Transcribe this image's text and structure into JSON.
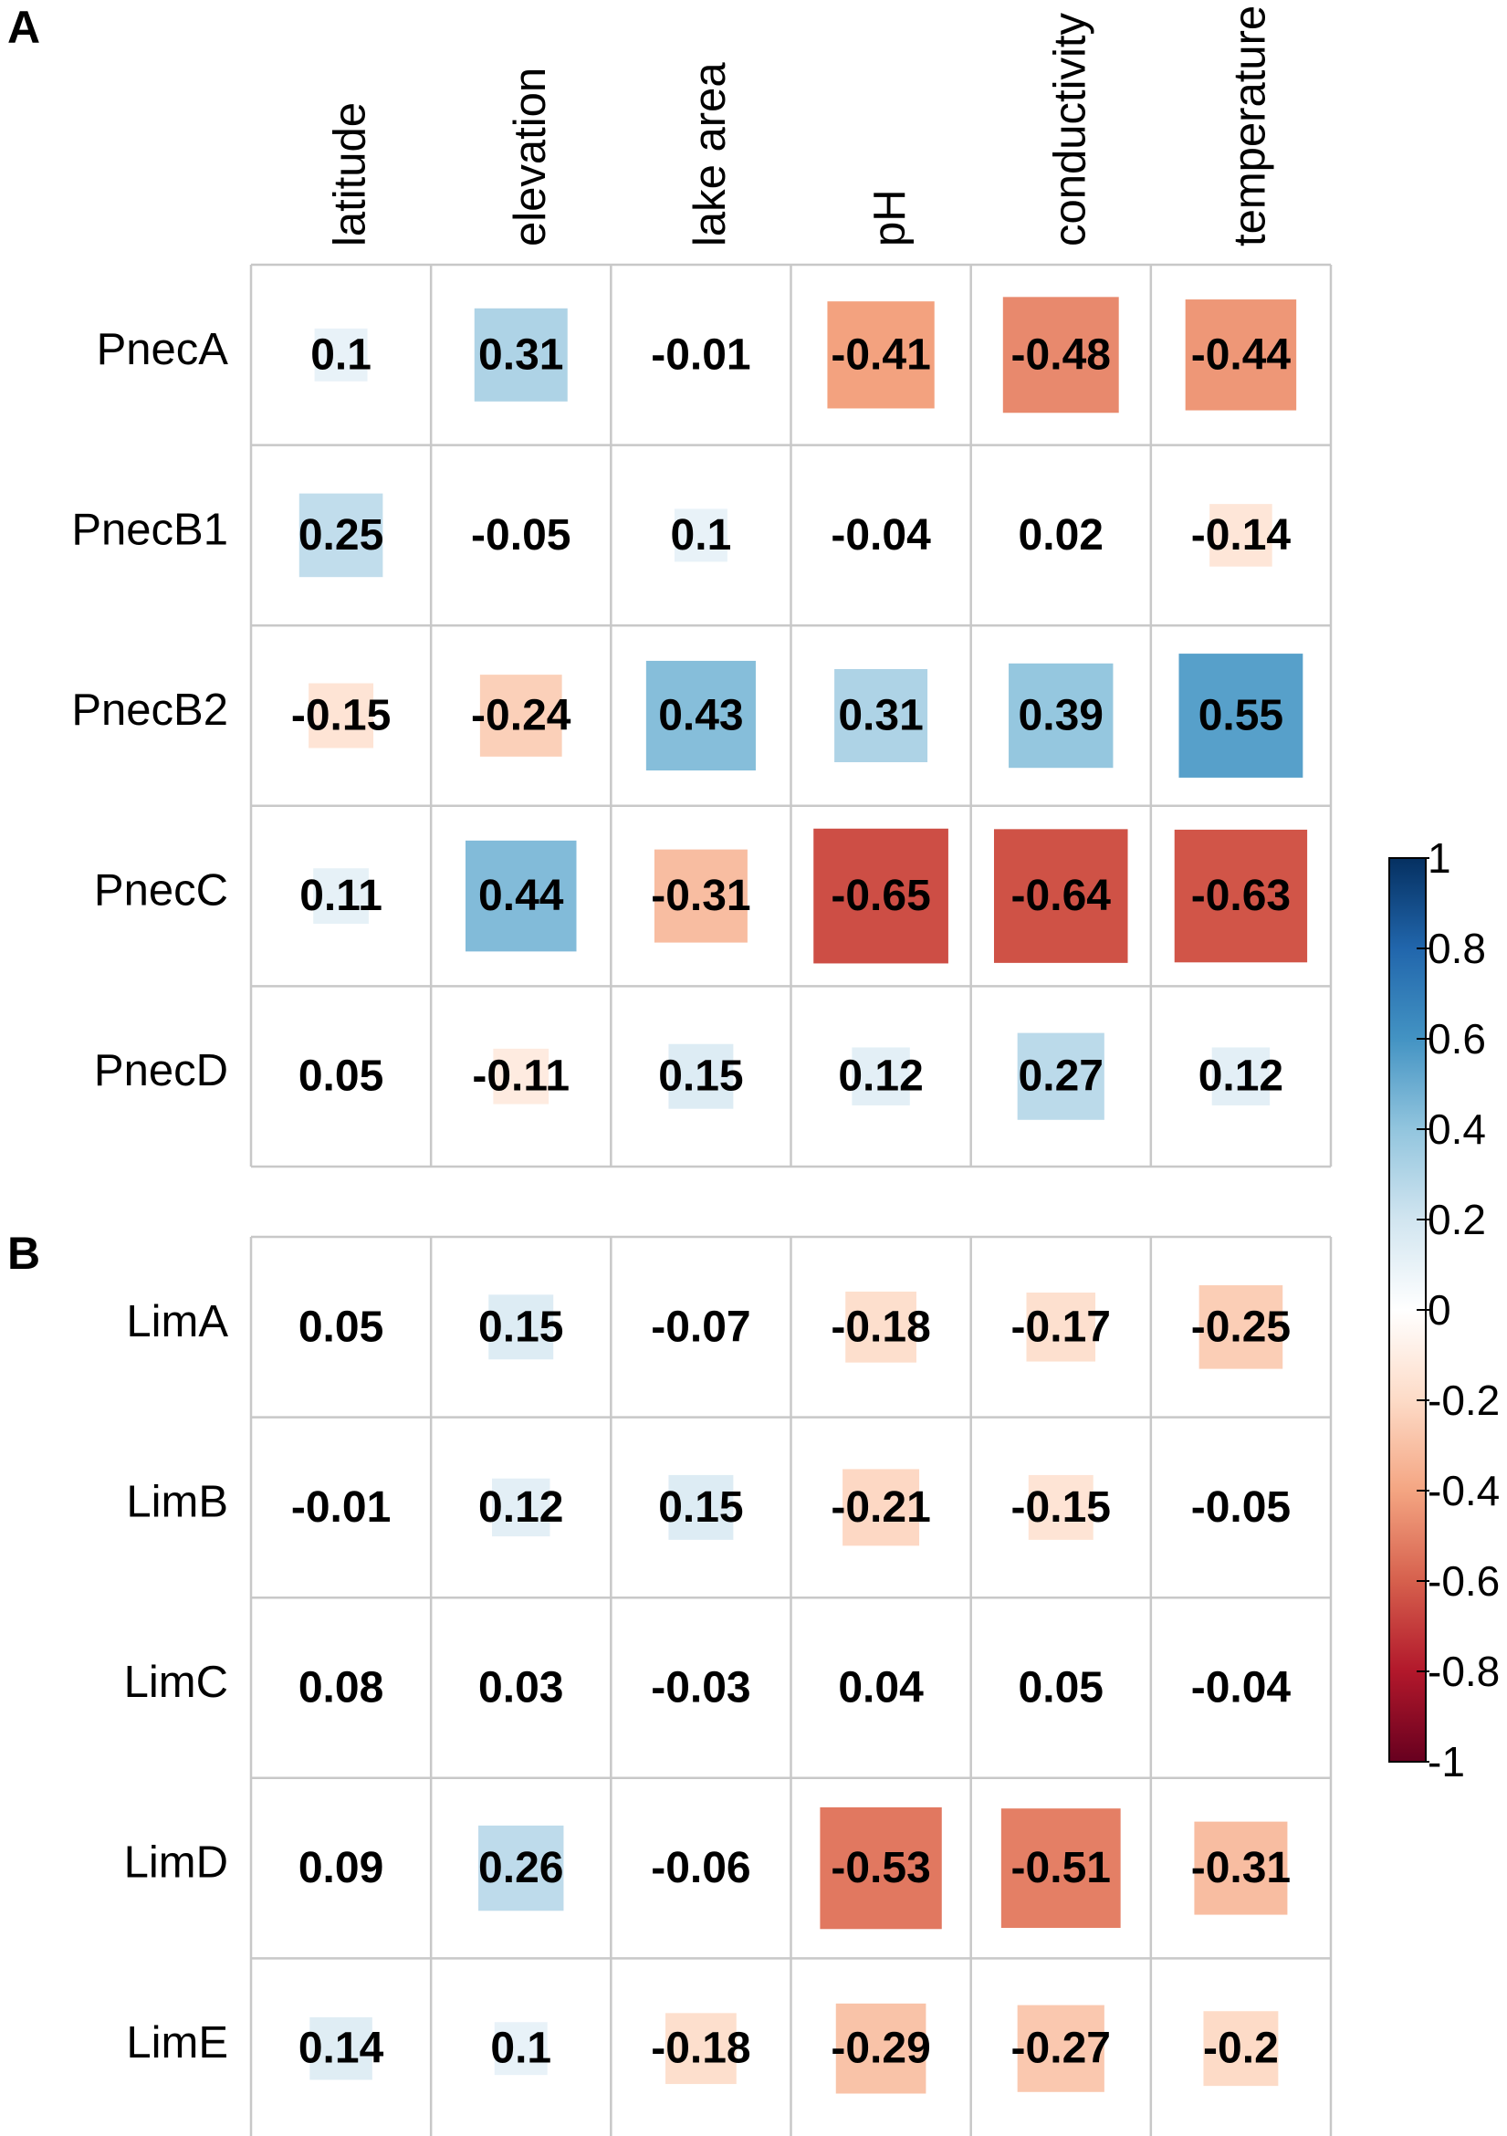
{
  "chart_data": {
    "type": "heatmap",
    "style": "correlation-squares",
    "columns": [
      "latitude",
      "elevation",
      "lake area",
      "pH",
      "conductivity",
      "temperature"
    ],
    "panels": [
      {
        "label": "A",
        "rows": [
          "PnecA",
          "PnecB1",
          "PnecB2",
          "PnecC",
          "PnecD"
        ],
        "values": [
          [
            0.1,
            0.31,
            -0.01,
            -0.41,
            -0.48,
            -0.44
          ],
          [
            0.25,
            -0.05,
            0.1,
            -0.04,
            0.02,
            -0.14
          ],
          [
            -0.15,
            -0.24,
            0.43,
            0.31,
            0.39,
            0.55
          ],
          [
            0.11,
            0.44,
            -0.31,
            -0.65,
            -0.64,
            -0.63
          ],
          [
            0.05,
            -0.11,
            0.15,
            0.12,
            0.27,
            0.12
          ]
        ],
        "value_labels": [
          [
            "0.1",
            "0.31",
            "-0.01",
            "-0.41",
            "-0.48",
            "-0.44"
          ],
          [
            "0.25",
            "-0.05",
            "0.1",
            "-0.04",
            "0.02",
            "-0.14"
          ],
          [
            "-0.15",
            "-0.24",
            "0.43",
            "0.31",
            "0.39",
            "0.55"
          ],
          [
            "0.11",
            "0.44",
            "-0.31",
            "-0.65",
            "-0.64",
            "-0.63"
          ],
          [
            "0.05",
            "-0.11",
            "0.15",
            "0.12",
            "0.27",
            "0.12"
          ]
        ]
      },
      {
        "label": "B",
        "rows": [
          "LimA",
          "LimB",
          "LimC",
          "LimD",
          "LimE"
        ],
        "values": [
          [
            0.05,
            0.15,
            -0.07,
            -0.18,
            -0.17,
            -0.25
          ],
          [
            -0.01,
            0.12,
            0.15,
            -0.21,
            -0.15,
            -0.05
          ],
          [
            0.08,
            0.03,
            -0.03,
            0.04,
            0.05,
            -0.04
          ],
          [
            0.09,
            0.26,
            -0.06,
            -0.53,
            -0.51,
            -0.31
          ],
          [
            0.14,
            0.1,
            -0.18,
            -0.29,
            -0.27,
            -0.2
          ]
        ],
        "value_labels": [
          [
            "0.05",
            "0.15",
            "-0.07",
            "-0.18",
            "-0.17",
            "-0.25"
          ],
          [
            "-0.01",
            "0.12",
            "0.15",
            "-0.21",
            "-0.15",
            "-0.05"
          ],
          [
            "0.08",
            "0.03",
            "-0.03",
            "0.04",
            "0.05",
            "-0.04"
          ],
          [
            "0.09",
            "0.26",
            "-0.06",
            "-0.53",
            "-0.51",
            "-0.31"
          ],
          [
            "0.14",
            "0.1",
            "-0.18",
            "-0.29",
            "-0.27",
            "-0.2"
          ]
        ]
      }
    ],
    "colorbar": {
      "range": [
        -1,
        1
      ],
      "ticks": [
        1,
        0.8,
        0.6,
        0.4,
        0.2,
        0,
        -0.2,
        -0.4,
        -0.6,
        -0.8,
        -1
      ],
      "tick_labels": [
        "1",
        "0.8",
        "0.6",
        "0.4",
        "0.2",
        "0",
        "-0.2",
        "-0.4",
        "-0.6",
        "-0.8",
        "-1"
      ],
      "colors_high_to_low": [
        "#053061",
        "#2166ac",
        "#4393c3",
        "#92c5de",
        "#d1e5f0",
        "#ffffff",
        "#fddbc7",
        "#f4a582",
        "#d6604d",
        "#b2182b",
        "#67001f"
      ]
    },
    "grid_color": "#c8c8c8",
    "text_color": "#000000"
  }
}
